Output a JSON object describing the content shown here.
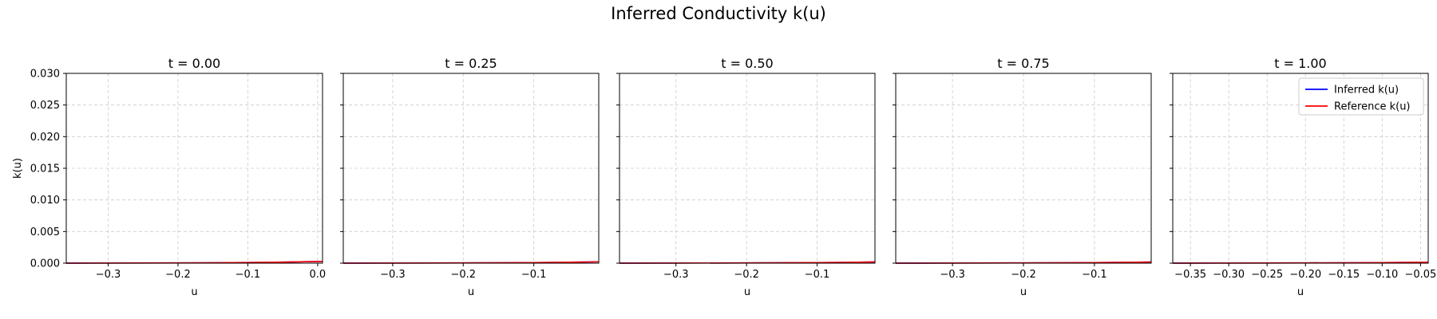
{
  "figure": {
    "title": "Inferred Conductivity k(u)"
  },
  "legend": {
    "placement": "top-right",
    "panel": 4,
    "entries": [
      {
        "label": "Inferred k(u)",
        "color": "#0000ff"
      },
      {
        "label": "Reference k(u)",
        "color": "#ff0000"
      }
    ]
  },
  "colors": {
    "inferred": "#0000ff",
    "reference": "#ff0000",
    "grid": "#cccccc"
  },
  "chart_data": [
    {
      "type": "line",
      "title": "t = 0.00",
      "xlabel": "u",
      "ylabel": "k(u)",
      "xlim": [
        -0.36,
        0.007
      ],
      "ylim": [
        0,
        0.03
      ],
      "xticks": [
        -0.3,
        -0.2,
        -0.1,
        0.0
      ],
      "xtick_labels": [
        "−0.3",
        "−0.2",
        "−0.1",
        "0.0"
      ],
      "yticks": [
        0,
        0.005,
        0.01,
        0.015,
        0.02,
        0.025,
        0.03
      ],
      "ytick_labels": [
        "0.000",
        "0.005",
        "0.010",
        "0.015",
        "0.020",
        "0.025",
        "0.030"
      ],
      "grid": true,
      "series": [
        {
          "name": "Inferred k(u)",
          "x": [
            -0.36,
            -0.3,
            -0.2,
            -0.1,
            -0.05,
            0.0,
            0.007
          ],
          "y": [
            1e-05,
            2e-05,
            4e-05,
            0.0001,
            0.00017,
            0.00026,
            0.00028
          ]
        },
        {
          "name": "Reference k(u)",
          "x": [
            -0.36,
            -0.3,
            -0.2,
            -0.1,
            -0.05,
            0.0,
            0.007
          ],
          "y": [
            1e-05,
            2e-05,
            4e-05,
            0.0001,
            0.00017,
            0.00026,
            0.00028
          ]
        }
      ]
    },
    {
      "type": "line",
      "title": "t = 0.25",
      "xlabel": "u",
      "ylabel": "",
      "xlim": [
        -0.37,
        -0.008
      ],
      "ylim": [
        0,
        0.03
      ],
      "xticks": [
        -0.3,
        -0.2,
        -0.1
      ],
      "xtick_labels": [
        "−0.3",
        "−0.2",
        "−0.1"
      ],
      "yticks": [
        0,
        0.005,
        0.01,
        0.015,
        0.02,
        0.025,
        0.03
      ],
      "ytick_labels": [],
      "grid": true,
      "series": [
        {
          "name": "Inferred k(u)",
          "x": [
            -0.37,
            -0.3,
            -0.2,
            -0.1,
            -0.05,
            -0.008
          ],
          "y": [
            1e-05,
            2e-05,
            4e-05,
            9e-05,
            0.00015,
            0.00022
          ]
        },
        {
          "name": "Reference k(u)",
          "x": [
            -0.37,
            -0.3,
            -0.2,
            -0.1,
            -0.05,
            -0.008
          ],
          "y": [
            1e-05,
            2e-05,
            4e-05,
            9e-05,
            0.00015,
            0.00022
          ]
        }
      ]
    },
    {
      "type": "line",
      "title": "t = 0.50",
      "xlabel": "u",
      "ylabel": "",
      "xlim": [
        -0.38,
        -0.018
      ],
      "ylim": [
        0,
        0.03
      ],
      "xticks": [
        -0.3,
        -0.2,
        -0.1
      ],
      "xtick_labels": [
        "−0.3",
        "−0.2",
        "−0.1"
      ],
      "yticks": [
        0,
        0.005,
        0.01,
        0.015,
        0.02,
        0.025,
        0.03
      ],
      "ytick_labels": [],
      "grid": true,
      "series": [
        {
          "name": "Inferred k(u)",
          "x": [
            -0.38,
            -0.3,
            -0.2,
            -0.1,
            -0.05,
            -0.018
          ],
          "y": [
            1e-05,
            2e-05,
            4e-05,
            9e-05,
            0.00014,
            0.0002
          ]
        },
        {
          "name": "Reference k(u)",
          "x": [
            -0.38,
            -0.3,
            -0.2,
            -0.1,
            -0.05,
            -0.018
          ],
          "y": [
            1e-05,
            2e-05,
            4e-05,
            9e-05,
            0.00014,
            0.0002
          ]
        }
      ]
    },
    {
      "type": "line",
      "title": "t = 0.75",
      "xlabel": "u",
      "ylabel": "",
      "xlim": [
        -0.38,
        -0.02
      ],
      "ylim": [
        0,
        0.03
      ],
      "xticks": [
        -0.3,
        -0.2,
        -0.1
      ],
      "xtick_labels": [
        "−0.3",
        "−0.2",
        "−0.1"
      ],
      "yticks": [
        0,
        0.005,
        0.01,
        0.015,
        0.02,
        0.025,
        0.03
      ],
      "ytick_labels": [],
      "grid": true,
      "series": [
        {
          "name": "Inferred k(u)",
          "x": [
            -0.38,
            -0.3,
            -0.2,
            -0.1,
            -0.05,
            -0.02
          ],
          "y": [
            1e-05,
            2e-05,
            4e-05,
            9e-05,
            0.00014,
            0.00019
          ]
        },
        {
          "name": "Reference k(u)",
          "x": [
            -0.38,
            -0.3,
            -0.2,
            -0.1,
            -0.05,
            -0.02
          ],
          "y": [
            1e-05,
            2e-05,
            4e-05,
            9e-05,
            0.00014,
            0.00019
          ]
        }
      ]
    },
    {
      "type": "line",
      "title": "t = 1.00",
      "xlabel": "u",
      "ylabel": "",
      "xlim": [
        -0.373,
        -0.04
      ],
      "ylim": [
        0,
        0.03
      ],
      "xticks": [
        -0.35,
        -0.3,
        -0.25,
        -0.2,
        -0.15,
        -0.1,
        -0.05
      ],
      "xtick_labels": [
        "−0.35",
        "−0.30",
        "−0.25",
        "−0.20",
        "−0.15",
        "−0.10",
        "−0.05"
      ],
      "yticks": [
        0,
        0.005,
        0.01,
        0.015,
        0.02,
        0.025,
        0.03
      ],
      "ytick_labels": [],
      "grid": true,
      "series": [
        {
          "name": "Inferred k(u)",
          "x": [
            -0.373,
            -0.3,
            -0.2,
            -0.1,
            -0.05,
            -0.04
          ],
          "y": [
            1e-05,
            2e-05,
            4e-05,
            9e-05,
            0.00013,
            0.00015
          ]
        },
        {
          "name": "Reference k(u)",
          "x": [
            -0.373,
            -0.3,
            -0.2,
            -0.1,
            -0.05,
            -0.04
          ],
          "y": [
            1e-05,
            2e-05,
            4e-05,
            9e-05,
            0.00013,
            0.00015
          ]
        }
      ]
    }
  ]
}
